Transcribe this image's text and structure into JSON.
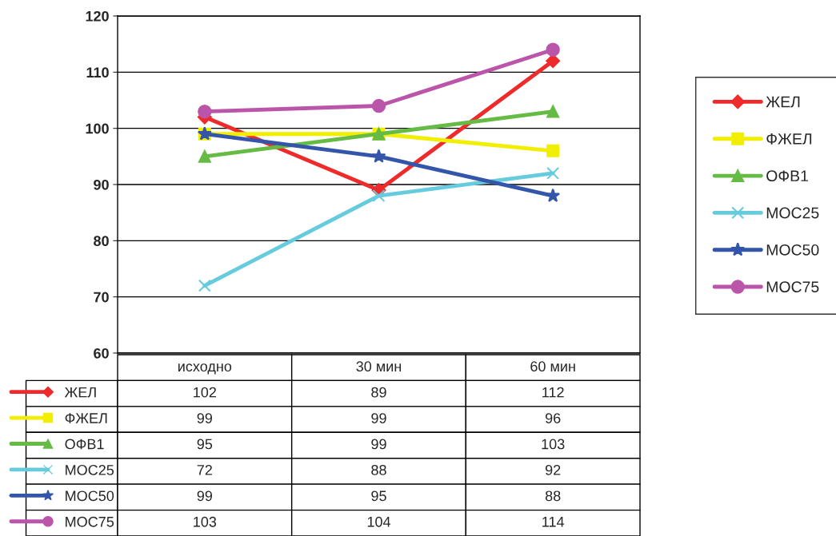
{
  "chart_data": {
    "type": "line",
    "categories": [
      "исходно",
      "30 мин",
      "60 мин"
    ],
    "series": [
      {
        "name": "ЖЕЛ",
        "color": "#ee2a2a",
        "marker": "diamond",
        "values": [
          102,
          89,
          112
        ]
      },
      {
        "name": "ФЖЕЛ",
        "color": "#f2ee00",
        "marker": "square",
        "values": [
          99,
          99,
          96
        ]
      },
      {
        "name": "ОФВ1",
        "color": "#66bb44",
        "marker": "triangle",
        "values": [
          95,
          99,
          103
        ]
      },
      {
        "name": "МОС25",
        "color": "#66ccdd",
        "marker": "cross",
        "values": [
          72,
          88,
          92
        ]
      },
      {
        "name": "МОС50",
        "color": "#3355aa",
        "marker": "star",
        "values": [
          99,
          95,
          88
        ]
      },
      {
        "name": "МОС75",
        "color": "#bb55aa",
        "marker": "circle",
        "values": [
          103,
          104,
          114
        ]
      }
    ],
    "ylim": [
      60,
      120
    ],
    "yticks": [
      60,
      70,
      80,
      90,
      100,
      110,
      120
    ],
    "grid": "y",
    "legend": "right",
    "data_labels": true
  }
}
